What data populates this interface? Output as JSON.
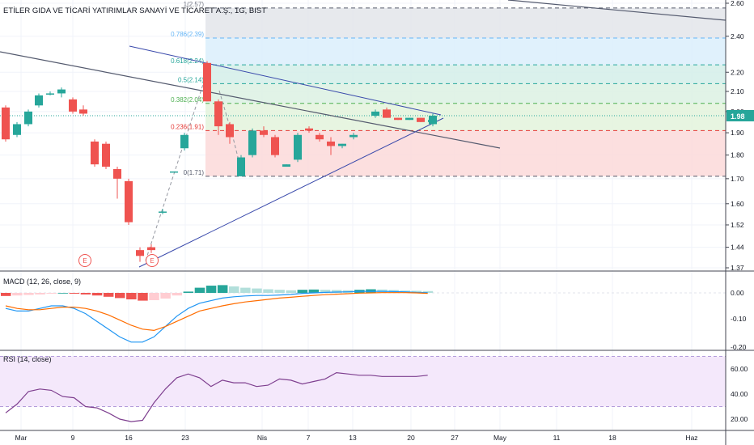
{
  "title": "ETİLER GIDA VE TİCARİ YATIRIMLAR SANAYİ VE TİCARET A.Ş., 1G, BIST",
  "last_price_badge": "1.98",
  "colors": {
    "up": "#26a69a",
    "down": "#ef5350",
    "macd_line": "#2196f3",
    "signal_line": "#ff6d00",
    "rsi_line": "#7e3f8f",
    "trend": "#545a6e",
    "channel": "#3949ab"
  },
  "chart_data": [
    {
      "type": "candlestick",
      "y_axis": {
        "scale": "log",
        "ticks": [
          "2.60",
          "2.40",
          "2.20",
          "2.10",
          "2.00",
          "1.90",
          "1.80",
          "1.70",
          "1.60",
          "1.52",
          "1.44",
          "1.37"
        ]
      },
      "x_axis": {
        "ticks": [
          "Mar",
          "9",
          "16",
          "23",
          "Nis",
          "7",
          "13",
          "20",
          "27",
          "May",
          "11",
          "18",
          "Haz"
        ]
      },
      "candles": [
        {
          "i": 0,
          "o": 2.02,
          "h": 2.03,
          "l": 1.86,
          "c": 1.87
        },
        {
          "i": 1,
          "o": 1.89,
          "h": 1.95,
          "l": 1.88,
          "c": 1.94
        },
        {
          "i": 2,
          "o": 1.94,
          "h": 2.01,
          "l": 1.93,
          "c": 2.0
        },
        {
          "i": 3,
          "o": 2.03,
          "h": 2.09,
          "l": 2.02,
          "c": 2.08
        },
        {
          "i": 4,
          "o": 2.09,
          "h": 2.1,
          "l": 2.08,
          "c": 2.09
        },
        {
          "i": 5,
          "o": 2.09,
          "h": 2.12,
          "l": 2.07,
          "c": 2.11
        },
        {
          "i": 6,
          "o": 2.06,
          "h": 2.07,
          "l": 1.99,
          "c": 2.0
        },
        {
          "i": 7,
          "o": 2.01,
          "h": 2.03,
          "l": 1.98,
          "c": 1.99
        },
        {
          "i": 8,
          "o": 1.86,
          "h": 1.87,
          "l": 1.75,
          "c": 1.76
        },
        {
          "i": 9,
          "o": 1.85,
          "h": 1.86,
          "l": 1.74,
          "c": 1.75
        },
        {
          "i": 10,
          "o": 1.74,
          "h": 1.75,
          "l": 1.62,
          "c": 1.7
        },
        {
          "i": 11,
          "o": 1.69,
          "h": 1.7,
          "l": 1.52,
          "c": 1.53
        },
        {
          "i": 12,
          "o": 1.43,
          "h": 1.44,
          "l": 1.39,
          "c": 1.41
        },
        {
          "i": 13,
          "o": 1.44,
          "h": 1.45,
          "l": 1.42,
          "c": 1.43
        },
        {
          "i": 14,
          "o": 1.57,
          "h": 1.58,
          "l": 1.56,
          "c": 1.57
        },
        {
          "i": 15,
          "o": 1.73,
          "h": 1.73,
          "l": 1.73,
          "c": 1.73
        },
        {
          "i": 16,
          "o": 1.83,
          "h": 1.9,
          "l": 1.82,
          "c": 1.89
        },
        {
          "i": 17,
          "o": 2.25,
          "h": 2.26,
          "l": 2.05,
          "c": 2.05
        },
        {
          "i": 18,
          "o": 2.05,
          "h": 2.06,
          "l": 1.89,
          "c": 1.93
        },
        {
          "i": 19,
          "o": 1.94,
          "h": 1.95,
          "l": 1.85,
          "c": 1.88
        },
        {
          "i": 20,
          "o": 1.71,
          "h": 1.8,
          "l": 1.71,
          "c": 1.79
        },
        {
          "i": 21,
          "o": 1.8,
          "h": 1.92,
          "l": 1.79,
          "c": 1.91
        },
        {
          "i": 22,
          "o": 1.91,
          "h": 1.93,
          "l": 1.88,
          "c": 1.89
        },
        {
          "i": 23,
          "o": 1.88,
          "h": 1.89,
          "l": 1.79,
          "c": 1.8
        },
        {
          "i": 24,
          "o": 1.75,
          "h": 1.76,
          "l": 1.75,
          "c": 1.76
        },
        {
          "i": 25,
          "o": 1.78,
          "h": 1.9,
          "l": 1.77,
          "c": 1.89
        },
        {
          "i": 26,
          "o": 1.92,
          "h": 1.93,
          "l": 1.9,
          "c": 1.91
        },
        {
          "i": 27,
          "o": 1.89,
          "h": 1.9,
          "l": 1.86,
          "c": 1.87
        },
        {
          "i": 28,
          "o": 1.86,
          "h": 1.88,
          "l": 1.8,
          "c": 1.84
        },
        {
          "i": 29,
          "o": 1.84,
          "h": 1.85,
          "l": 1.83,
          "c": 1.85
        },
        {
          "i": 30,
          "o": 1.88,
          "h": 1.9,
          "l": 1.87,
          "c": 1.89
        },
        {
          "i": 31,
          "o": 1.98,
          "h": 2.01,
          "l": 1.97,
          "c": 2.0
        },
        {
          "i": 32,
          "o": 2.01,
          "h": 2.02,
          "l": 1.97,
          "c": 1.97
        },
        {
          "i": 33,
          "o": 1.97,
          "h": 1.97,
          "l": 1.96,
          "c": 1.96
        },
        {
          "i": 34,
          "o": 1.96,
          "h": 1.97,
          "l": 1.96,
          "c": 1.97
        },
        {
          "i": 35,
          "o": 1.97,
          "h": 1.97,
          "l": 1.95,
          "c": 1.95
        },
        {
          "i": 36,
          "o": 1.95,
          "h": 1.96,
          "l": 1.95,
          "c": 1.96
        },
        {
          "i": 37,
          "o": 1.94,
          "h": 1.99,
          "l": 1.93,
          "c": 1.98
        }
      ],
      "fibonacci": [
        {
          "label": "1(2.57)",
          "price": 2.57
        },
        {
          "label": "0.786(2.39)",
          "price": 2.39
        },
        {
          "label": "0.618(2.24)",
          "price": 2.24
        },
        {
          "label": "0.5(2.14)",
          "price": 2.14
        },
        {
          "label": "0.382(2.04)",
          "price": 2.04
        },
        {
          "label": "0.236(1.91)",
          "price": 1.91
        },
        {
          "label": "0(1.71)",
          "price": 1.71
        }
      ],
      "earnings_markers": [
        "E",
        "E"
      ]
    },
    {
      "type": "macd",
      "label": "MACD (12, 26, close, 9)",
      "y_axis": {
        "ticks": [
          "0.00",
          "-0.10",
          "-0.20"
        ]
      },
      "histogram": [
        -0.012,
        -0.01,
        -0.008,
        -0.006,
        -0.003,
        0.0,
        -0.003,
        -0.006,
        -0.01,
        -0.015,
        -0.02,
        -0.025,
        -0.03,
        -0.028,
        -0.022,
        -0.01,
        0.005,
        0.02,
        0.028,
        0.03,
        0.025,
        0.02,
        0.017,
        0.014,
        0.012,
        0.01,
        0.012,
        0.013,
        0.012,
        0.011,
        0.01,
        0.012,
        0.014,
        0.013,
        0.011,
        0.009,
        0.008,
        0.007
      ],
      "macd": [
        -0.06,
        -0.07,
        -0.07,
        -0.06,
        -0.05,
        -0.05,
        -0.06,
        -0.08,
        -0.11,
        -0.14,
        -0.17,
        -0.19,
        -0.19,
        -0.17,
        -0.13,
        -0.09,
        -0.06,
        -0.04,
        -0.03,
        -0.02,
        -0.015,
        -0.012,
        -0.01,
        -0.01,
        -0.008,
        -0.006,
        -0.002,
        0.0,
        0.002,
        0.003,
        0.004,
        0.006,
        0.006,
        0.006,
        0.005,
        0.004,
        0.002,
        0.001
      ],
      "signal": [
        -0.05,
        -0.06,
        -0.065,
        -0.065,
        -0.06,
        -0.055,
        -0.055,
        -0.06,
        -0.07,
        -0.085,
        -0.105,
        -0.125,
        -0.14,
        -0.145,
        -0.13,
        -0.11,
        -0.09,
        -0.07,
        -0.06,
        -0.05,
        -0.042,
        -0.035,
        -0.03,
        -0.025,
        -0.02,
        -0.017,
        -0.013,
        -0.01,
        -0.007,
        -0.005,
        -0.003,
        -0.001,
        0.0,
        0.001,
        0.001,
        0.001,
        0.0,
        -0.002
      ]
    },
    {
      "type": "line",
      "label": "RSI (14, close)",
      "y_axis": {
        "ticks": [
          "60.00",
          "40.00",
          "20.00"
        ]
      },
      "band": [
        30,
        70
      ],
      "values": [
        25,
        32,
        42,
        44,
        43,
        38,
        37,
        30,
        29,
        25,
        20,
        18,
        19,
        33,
        44,
        53,
        56,
        53,
        46,
        51,
        49,
        49,
        46,
        47,
        52,
        51,
        48,
        50,
        52,
        57,
        56,
        55,
        55,
        54,
        54,
        54,
        54,
        55
      ]
    }
  ]
}
